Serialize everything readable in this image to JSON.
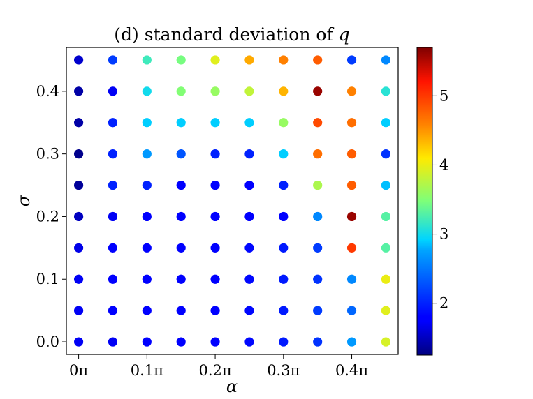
{
  "chart_data": {
    "type": "scatter",
    "title": "(d) standard deviation of q",
    "title_prefix": "(d) standard deviation of ",
    "title_var": "q",
    "xlabel": "α",
    "ylabel": "σ",
    "x": [
      0,
      0.05,
      0.1,
      0.15,
      0.2,
      0.25,
      0.3,
      0.35,
      0.4,
      0.45
    ],
    "y": [
      0,
      0.05,
      0.1,
      0.15,
      0.2,
      0.25,
      0.3,
      0.35,
      0.4,
      0.45
    ],
    "xlim": [
      -0.018,
      0.468
    ],
    "ylim": [
      -0.02,
      0.47
    ],
    "xticks": [
      {
        "value": 0,
        "label": "0π"
      },
      {
        "value": 0.1,
        "label": "0.1π"
      },
      {
        "value": 0.2,
        "label": "0.2π"
      },
      {
        "value": 0.3,
        "label": "0.3π"
      },
      {
        "value": 0.4,
        "label": "0.4π"
      }
    ],
    "yticks": [
      {
        "value": 0,
        "label": "0.0"
      },
      {
        "value": 0.1,
        "label": "0.1"
      },
      {
        "value": 0.2,
        "label": "0.2"
      },
      {
        "value": 0.3,
        "label": "0.3"
      },
      {
        "value": 0.4,
        "label": "0.4"
      }
    ],
    "values_note": "values[i][j] = std of q at sigma y[i], alpha x[j]",
    "values": [
      [
        1.7,
        1.7,
        1.75,
        1.8,
        1.8,
        1.85,
        1.95,
        2.1,
        2.7,
        3.9
      ],
      [
        1.7,
        1.75,
        1.75,
        1.8,
        1.8,
        1.85,
        1.95,
        2.15,
        2.4,
        3.95
      ],
      [
        1.7,
        1.75,
        1.75,
        1.8,
        1.8,
        1.85,
        1.95,
        2.1,
        2.6,
        4.0
      ],
      [
        1.65,
        1.75,
        1.75,
        1.8,
        1.8,
        1.85,
        1.95,
        2.15,
        5.0,
        3.3
      ],
      [
        1.5,
        1.7,
        1.75,
        1.75,
        1.75,
        1.75,
        1.8,
        2.6,
        5.6,
        3.3
      ],
      [
        1.35,
        2.0,
        2.0,
        1.8,
        1.8,
        1.8,
        2.0,
        3.7,
        4.8,
        2.85
      ],
      [
        1.3,
        2.0,
        2.7,
        2.3,
        2.0,
        2.0,
        2.9,
        4.7,
        4.8,
        2.1
      ],
      [
        1.4,
        2.0,
        2.9,
        2.9,
        2.9,
        2.9,
        3.6,
        4.9,
        4.7,
        2.9
      ],
      [
        1.4,
        1.7,
        3.0,
        3.5,
        3.6,
        3.8,
        4.35,
        5.6,
        4.6,
        3.1
      ],
      [
        1.55,
        2.15,
        3.2,
        3.45,
        3.95,
        4.4,
        4.6,
        4.8,
        2.15,
        2.6
      ]
    ],
    "colorbar": {
      "min": 1.25,
      "max": 5.7,
      "colormap": "jet",
      "ticks": [
        {
          "value": 2,
          "label": "2"
        },
        {
          "value": 3,
          "label": "3"
        },
        {
          "value": 4,
          "label": "4"
        },
        {
          "value": 5,
          "label": "5"
        }
      ]
    }
  }
}
